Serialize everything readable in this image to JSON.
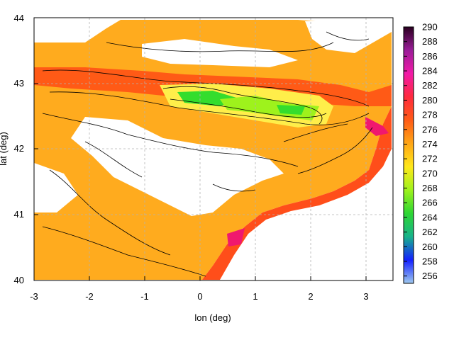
{
  "chart_data": {
    "type": "heatmap",
    "title": "",
    "xlabel": "lon (deg)",
    "ylabel": "lat (deg)",
    "xlim": [
      -3,
      3.5
    ],
    "ylim": [
      40,
      44
    ],
    "x_ticks": [
      "-3",
      "-2",
      "-1",
      "0",
      "1",
      "2",
      "3"
    ],
    "y_ticks": [
      "40",
      "41",
      "42",
      "43",
      "44"
    ],
    "colorbar": {
      "range": [
        255,
        290
      ],
      "ticks": [
        "256",
        "258",
        "260",
        "262",
        "264",
        "266",
        "268",
        "270",
        "272",
        "274",
        "276",
        "278",
        "280",
        "282",
        "284",
        "286",
        "288",
        "290"
      ],
      "palette": [
        "#9ec9ef",
        "#1420ff",
        "#17b38a",
        "#2dd633",
        "#9ef21c",
        "#ffe81a",
        "#ffa616",
        "#ff5b16",
        "#ff2a3e",
        "#f21aa8",
        "#9a1d98",
        "#2a0020"
      ]
    },
    "overlay": "contour lines (black)",
    "grid": true,
    "missing_data_color": "#ffffff"
  }
}
